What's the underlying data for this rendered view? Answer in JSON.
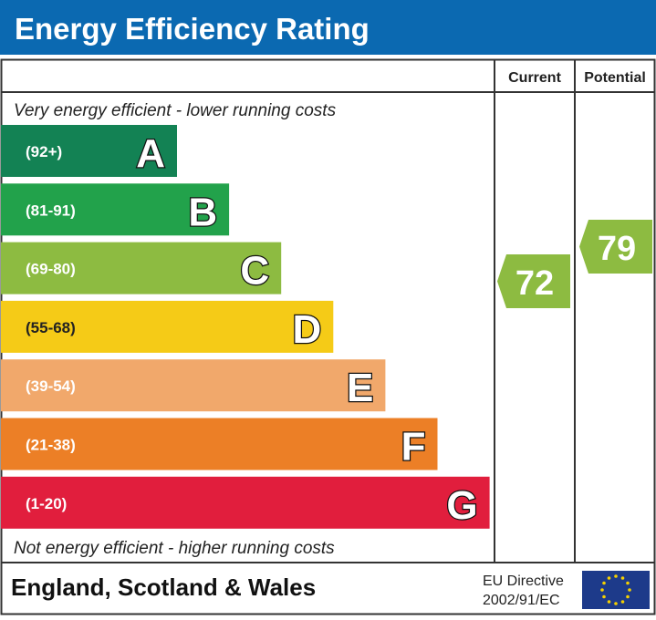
{
  "title": "Energy Efficiency Rating",
  "columns": {
    "current": "Current",
    "potential": "Potential"
  },
  "top_note": "Very energy efficient - lower running costs",
  "bottom_note": "Not energy efficient - higher running costs",
  "footer": {
    "region": "England, Scotland & Wales",
    "directive_line1": "EU Directive",
    "directive_line2": "2002/91/EC",
    "flag_icon": "eu-flag-icon"
  },
  "colors": {
    "header": "#0b69b1",
    "current": "#8dbb41",
    "potential": "#8dbb41"
  },
  "chart_data": {
    "type": "bar",
    "categories": [
      "A",
      "B",
      "C",
      "D",
      "E",
      "F",
      "G"
    ],
    "ranges": [
      "(92+)",
      "(81-91)",
      "(69-80)",
      "(55-68)",
      "(39-54)",
      "(21-38)",
      "(1-20)"
    ],
    "colors": [
      "#138254",
      "#22a24b",
      "#8dbb41",
      "#f5cb17",
      "#f1a86b",
      "#ec7f26",
      "#e11e3d"
    ],
    "current": {
      "value": "72",
      "band": "C"
    },
    "potential": {
      "value": "79",
      "band": "C"
    }
  }
}
